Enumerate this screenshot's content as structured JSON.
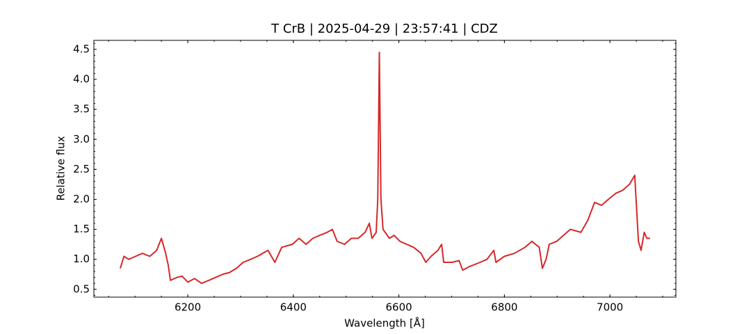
{
  "chart_data": {
    "type": "line",
    "title": "T CrB | 2025-04-29 | 23:57:41 | CDZ",
    "xlabel": "Wavelength [Å]",
    "ylabel": "Relative flux",
    "x": [
      6072,
      6079,
      6088,
      6101,
      6114,
      6128,
      6141,
      6150,
      6158,
      6163,
      6167,
      6180,
      6189,
      6200,
      6213,
      6226,
      6240,
      6253,
      6266,
      6279,
      6292,
      6305,
      6319,
      6332,
      6352,
      6365,
      6378,
      6398,
      6411,
      6424,
      6437,
      6450,
      6464,
      6474,
      6483,
      6497,
      6510,
      6523,
      6536,
      6544,
      6549,
      6557,
      6560,
      6563,
      6566,
      6570,
      6582,
      6591,
      6602,
      6615,
      6628,
      6642,
      6651,
      6661,
      6674,
      6681,
      6685,
      6701,
      6714,
      6721,
      6734,
      6754,
      6767,
      6780,
      6784,
      6800,
      6819,
      6839,
      6852,
      6866,
      6872,
      6879,
      6885,
      6899,
      6912,
      6925,
      6945,
      6958,
      6971,
      6984,
      6997,
      7011,
      7024,
      7037,
      7047,
      7054,
      7059,
      7065,
      7070,
      7076
    ],
    "series": [
      {
        "name": "T CrB",
        "color": "#d62728",
        "values": [
          0.85,
          1.05,
          1.0,
          1.05,
          1.1,
          1.05,
          1.15,
          1.35,
          1.1,
          0.9,
          0.65,
          0.7,
          0.72,
          0.62,
          0.68,
          0.6,
          0.65,
          0.7,
          0.75,
          0.78,
          0.85,
          0.95,
          1.0,
          1.05,
          1.15,
          0.95,
          1.2,
          1.25,
          1.35,
          1.25,
          1.35,
          1.4,
          1.45,
          1.5,
          1.3,
          1.25,
          1.35,
          1.35,
          1.45,
          1.6,
          1.35,
          1.45,
          2.0,
          4.45,
          2.0,
          1.5,
          1.35,
          1.4,
          1.3,
          1.25,
          1.2,
          1.1,
          0.95,
          1.05,
          1.15,
          1.25,
          0.95,
          0.95,
          0.98,
          0.82,
          0.88,
          0.95,
          1.0,
          1.15,
          0.95,
          1.05,
          1.1,
          1.2,
          1.3,
          1.2,
          0.85,
          1.0,
          1.25,
          1.3,
          1.4,
          1.5,
          1.45,
          1.65,
          1.95,
          1.9,
          2.0,
          2.1,
          2.15,
          2.25,
          2.4,
          1.3,
          1.15,
          1.45,
          1.35,
          1.35
        ]
      }
    ],
    "xlim": [
      6022,
      7125
    ],
    "ylim": [
      0.37,
      4.65
    ],
    "xticks": [
      6200,
      6400,
      6600,
      6800,
      7000
    ],
    "yticks": [
      0.5,
      {
        "value": 1,
        "label": "1.0"
      },
      1.5,
      {
        "value": 2,
        "label": "2.0"
      },
      2.5,
      {
        "value": 3,
        "label": "3.0"
      },
      3.5,
      {
        "value": 4,
        "label": "4.0"
      },
      4.5
    ],
    "grid": false
  }
}
